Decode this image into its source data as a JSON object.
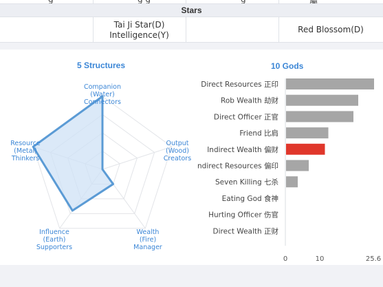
{
  "table": {
    "clipped_row": [
      "g",
      "g   g",
      "g",
      "屬"
    ],
    "stars_heading": "Stars",
    "stars_row": {
      "c1": "",
      "c2_line1": "Tai Ji Star(D)",
      "c2_line2": "Intelligence(Y)",
      "c3": "",
      "c4": "Red Blossom(D)"
    }
  },
  "colors": {
    "title": "#3b86d6",
    "radar_line": "#5b9bd5",
    "radar_fill": "#cfe1f6",
    "bar": "#a6a6a6",
    "bar_highlight": "#e0372b"
  },
  "chart_data": [
    {
      "type": "radar",
      "title": "5 Structures",
      "axes": [
        {
          "line1": "Companion",
          "line2": "(Water)",
          "line3": "Connectors",
          "value": 1.0
        },
        {
          "line1": "Output",
          "line2": "(Wood)",
          "line3": "Creators",
          "value": 0.0
        },
        {
          "line1": "Wealth",
          "line2": "(Fire)",
          "line3": "Manager",
          "value": 0.25
        },
        {
          "line1": "Influence",
          "line2": "(Earth)",
          "line3": "Supporters",
          "value": 0.7
        },
        {
          "line1": "Resource",
          "line2": "(Metal)",
          "line3": "Thinkers",
          "value": 1.0
        }
      ],
      "center_point": 0.0,
      "grid_levels": 4
    },
    {
      "type": "bar",
      "orientation": "horizontal",
      "title": "10 Gods",
      "categories": [
        "Direct Resources 正印",
        "Rob Wealth 劫财",
        "Direct Officer 正官",
        "Friend 比肩",
        "Indirect Wealth 偏财",
        "Indirect Resources 偏印",
        "Seven Killing 七杀",
        "Eating God 食神",
        "Hurting Officer 伤官",
        "Direct Wealth 正财"
      ],
      "values": [
        25.6,
        21.0,
        19.6,
        12.3,
        11.3,
        6.6,
        3.4,
        0,
        0,
        0
      ],
      "highlight_index": 4,
      "xlim": [
        0,
        25.6
      ],
      "xticks": [
        "0",
        "10",
        "25.6"
      ]
    }
  ]
}
